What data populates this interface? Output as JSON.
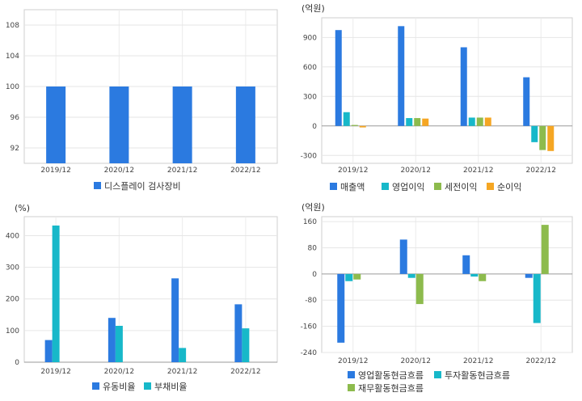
{
  "chart_data": [
    {
      "id": "tl",
      "type": "bar",
      "unit": "",
      "categories": [
        "2019/12",
        "2020/12",
        "2021/12",
        "2022/12"
      ],
      "ylim": [
        90,
        110
      ],
      "yticks": [
        92,
        96,
        100,
        104,
        108
      ],
      "grid": true,
      "legend_position": "bottom",
      "series": [
        {
          "name": "디스플레이 검사장비",
          "color": "#2b7ae0",
          "values": [
            100,
            100,
            100,
            100
          ]
        }
      ]
    },
    {
      "id": "tr",
      "type": "bar",
      "unit": "(억원)",
      "categories": [
        "2019/12",
        "2020/12",
        "2021/12",
        "2022/12"
      ],
      "ylim": [
        -380,
        1100
      ],
      "yticks": [
        -300,
        0,
        300,
        600,
        900
      ],
      "grid": true,
      "legend_position": "bottom",
      "series": [
        {
          "name": "매출액",
          "color": "#2b7ae0",
          "values": [
            975,
            1015,
            800,
            495
          ]
        },
        {
          "name": "영업이익",
          "color": "#17b8c9",
          "values": [
            140,
            80,
            85,
            -165
          ]
        },
        {
          "name": "세전이익",
          "color": "#8dbb4d",
          "values": [
            10,
            80,
            85,
            -245
          ]
        },
        {
          "name": "순이익",
          "color": "#f5a623",
          "values": [
            -15,
            75,
            85,
            -255
          ]
        }
      ]
    },
    {
      "id": "bl",
      "type": "bar",
      "unit": "(%)",
      "categories": [
        "2019/12",
        "2020/12",
        "2021/12",
        "2022/12"
      ],
      "ylim": [
        0,
        460
      ],
      "yticks": [
        0,
        100,
        200,
        300,
        400
      ],
      "grid": true,
      "legend_position": "bottom",
      "series": [
        {
          "name": "유동비율",
          "color": "#2b7ae0",
          "values": [
            70,
            140,
            265,
            183
          ]
        },
        {
          "name": "부채비율",
          "color": "#17b8c9",
          "values": [
            432,
            115,
            45,
            107
          ]
        }
      ]
    },
    {
      "id": "br",
      "type": "bar",
      "unit": "(억원)",
      "categories": [
        "2019/12",
        "2020/12",
        "2021/12",
        "2022/12"
      ],
      "ylim": [
        -240,
        175
      ],
      "yticks": [
        -240,
        -160,
        -80,
        0,
        80,
        160
      ],
      "grid": true,
      "legend_position": "bottom",
      "series": [
        {
          "name": "영업활동현금흐름",
          "color": "#2b7ae0",
          "values": [
            -210,
            105,
            57,
            -12
          ]
        },
        {
          "name": "투자활동현금흐름",
          "color": "#17b8c9",
          "values": [
            -22,
            -12,
            -8,
            -150
          ]
        },
        {
          "name": "재무활동현금흐름",
          "color": "#8dbb4d",
          "values": [
            -17,
            -92,
            -22,
            150
          ]
        }
      ]
    }
  ]
}
